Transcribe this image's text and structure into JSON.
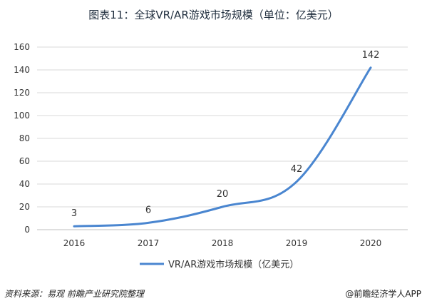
{
  "chart_data": {
    "type": "line",
    "title": "图表11：全球VR/AR游戏市场规模（单位：亿美元）",
    "categories": [
      "2016",
      "2017",
      "2018",
      "2019",
      "2020"
    ],
    "series": [
      {
        "name": "VR/AR游戏市场规模（亿美元）",
        "values": [
          3,
          6,
          20,
          42,
          142
        ],
        "color": "#4a86d0"
      }
    ],
    "ylim": [
      0,
      160
    ],
    "yticks": [
      0,
      20,
      40,
      60,
      80,
      100,
      120,
      140,
      160
    ],
    "grid": true,
    "legend": "bottom",
    "data_labels": true
  },
  "footer": {
    "source": "资料来源：易观  前瞻产业研究院整理",
    "credit": "@前瞻经济学人APP"
  },
  "colors": {
    "line": "#4a86d0",
    "grid": "#d9d9d9",
    "text": "#333333"
  }
}
